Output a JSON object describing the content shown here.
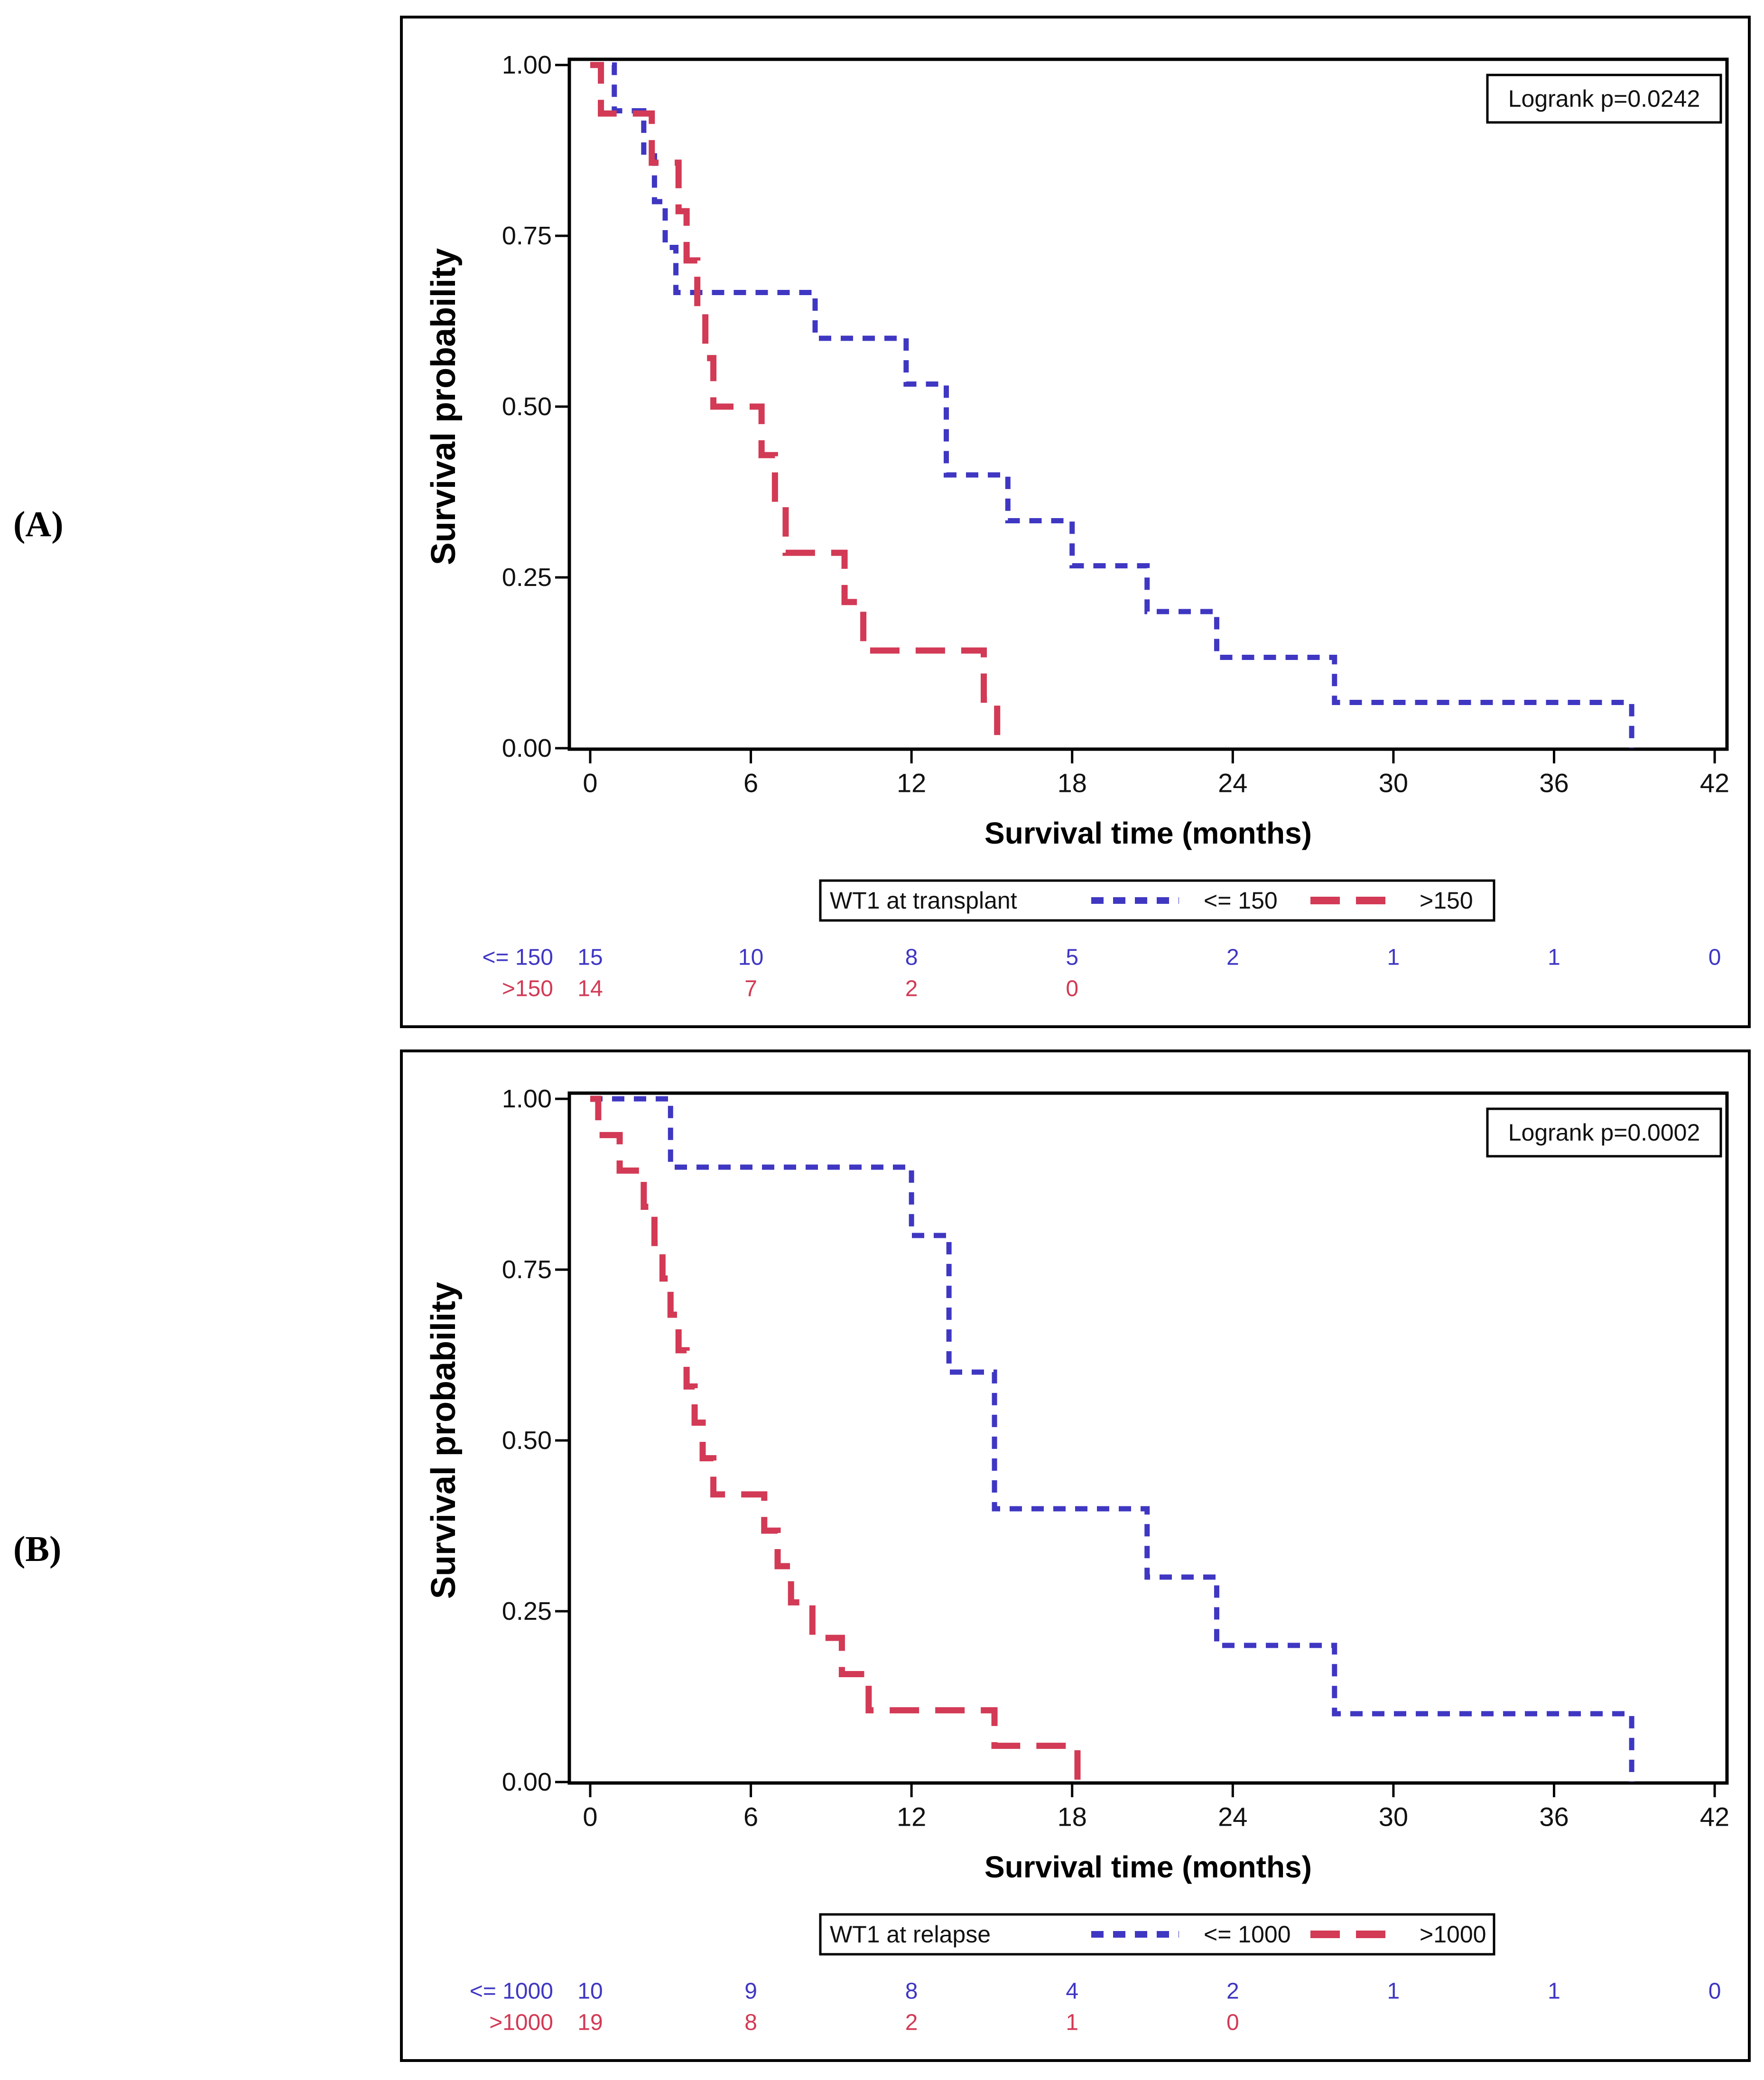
{
  "panel_labels": [
    "(A)",
    "(B)"
  ],
  "chart_data": [
    {
      "type": "line",
      "subtype": "kaplan-meier-step",
      "panel": "A",
      "logrank_label": "Logrank p=0.0242",
      "xlabel": "Survival time (months)",
      "ylabel": "Survival probability",
      "xlim": [
        0,
        42
      ],
      "ylim": [
        0,
        1
      ],
      "grid": false,
      "xticks": [
        0,
        6,
        12,
        18,
        24,
        30,
        36,
        42
      ],
      "xtick_labels": [
        "0",
        "6",
        "12",
        "18",
        "24",
        "30",
        "36",
        "42"
      ],
      "yticks": [
        1.0,
        0.75,
        0.5,
        0.25,
        0.0
      ],
      "ytick_labels": [
        "1.00",
        "0.75",
        "0.50",
        "0.25",
        "0.00"
      ],
      "legend": {
        "position": "bottom",
        "title": "WT1 at transplant",
        "entries": [
          {
            "label": "<= 150",
            "color": "#3f37c2",
            "style": "dotted"
          },
          {
            "label": ">150",
            "color": "#d23a55",
            "style": "dashed"
          }
        ]
      },
      "series": [
        {
          "name": "<= 150",
          "color": "#3f37c2",
          "style": "dotted",
          "steps": [
            [
              0,
              1.0
            ],
            [
              0.9,
              0.933
            ],
            [
              2.0,
              0.867
            ],
            [
              2.4,
              0.8
            ],
            [
              2.8,
              0.733
            ],
            [
              3.2,
              0.667
            ],
            [
              8.4,
              0.6
            ],
            [
              11.8,
              0.533
            ],
            [
              13.3,
              0.4
            ],
            [
              15.6,
              0.333
            ],
            [
              18.0,
              0.267
            ],
            [
              20.8,
              0.2
            ],
            [
              23.4,
              0.133
            ],
            [
              27.8,
              0.067
            ],
            [
              38.9,
              0.0
            ]
          ]
        },
        {
          "name": ">150",
          "color": "#d23a55",
          "style": "dashed",
          "steps": [
            [
              0,
              1.0
            ],
            [
              0.4,
              0.929
            ],
            [
              2.3,
              0.857
            ],
            [
              3.3,
              0.786
            ],
            [
              3.6,
              0.714
            ],
            [
              4.0,
              0.643
            ],
            [
              4.3,
              0.571
            ],
            [
              4.6,
              0.5
            ],
            [
              6.4,
              0.429
            ],
            [
              6.9,
              0.357
            ],
            [
              7.3,
              0.286
            ],
            [
              9.5,
              0.214
            ],
            [
              10.2,
              0.143
            ],
            [
              14.7,
              0.071
            ],
            [
              15.2,
              0.0
            ]
          ]
        }
      ],
      "at_risk": [
        {
          "label": "<= 150",
          "color": "#3f37c2",
          "values": [
            "15",
            "10",
            "8",
            "5",
            "2",
            "1",
            "1",
            "0"
          ]
        },
        {
          "label": ">150",
          "color": "#d23a55",
          "values": [
            "14",
            "7",
            "2",
            "0"
          ]
        }
      ]
    },
    {
      "type": "line",
      "subtype": "kaplan-meier-step",
      "panel": "B",
      "logrank_label": "Logrank p=0.0002",
      "xlabel": "Survival time (months)",
      "ylabel": "Survival probability",
      "xlim": [
        0,
        42
      ],
      "ylim": [
        0,
        1
      ],
      "grid": false,
      "xticks": [
        0,
        6,
        12,
        18,
        24,
        30,
        36,
        42
      ],
      "xtick_labels": [
        "0",
        "6",
        "12",
        "18",
        "24",
        "30",
        "36",
        "42"
      ],
      "yticks": [
        1.0,
        0.75,
        0.5,
        0.25,
        0.0
      ],
      "ytick_labels": [
        "1.00",
        "0.75",
        "0.50",
        "0.25",
        "0.00"
      ],
      "legend": {
        "position": "bottom",
        "title": "WT1 at relapse",
        "entries": [
          {
            "label": "<= 1000",
            "color": "#3f37c2",
            "style": "dotted"
          },
          {
            "label": ">1000",
            "color": "#d23a55",
            "style": "dashed"
          }
        ]
      },
      "series": [
        {
          "name": "<= 1000",
          "color": "#3f37c2",
          "style": "dotted",
          "steps": [
            [
              0,
              1.0
            ],
            [
              3.0,
              0.9
            ],
            [
              12.0,
              0.8
            ],
            [
              13.4,
              0.6
            ],
            [
              15.1,
              0.4
            ],
            [
              20.8,
              0.3
            ],
            [
              23.4,
              0.2
            ],
            [
              27.8,
              0.1
            ],
            [
              38.9,
              0.0
            ]
          ]
        },
        {
          "name": ">1000",
          "color": "#d23a55",
          "style": "dashed",
          "steps": [
            [
              0,
              1.0
            ],
            [
              0.3,
              0.947
            ],
            [
              1.1,
              0.895
            ],
            [
              2.0,
              0.842
            ],
            [
              2.4,
              0.789
            ],
            [
              2.7,
              0.737
            ],
            [
              3.0,
              0.684
            ],
            [
              3.3,
              0.632
            ],
            [
              3.6,
              0.579
            ],
            [
              3.9,
              0.526
            ],
            [
              4.2,
              0.474
            ],
            [
              4.6,
              0.421
            ],
            [
              6.5,
              0.368
            ],
            [
              7.0,
              0.316
            ],
            [
              7.5,
              0.263
            ],
            [
              8.3,
              0.211
            ],
            [
              9.4,
              0.158
            ],
            [
              10.4,
              0.105
            ],
            [
              15.1,
              0.053
            ],
            [
              18.2,
              0.0
            ]
          ]
        }
      ],
      "at_risk": [
        {
          "label": "<= 1000",
          "color": "#3f37c2",
          "values": [
            "10",
            "9",
            "8",
            "4",
            "2",
            "1",
            "1",
            "0"
          ]
        },
        {
          "label": ">1000",
          "color": "#d23a55",
          "values": [
            "19",
            "8",
            "2",
            "1",
            "0"
          ]
        }
      ]
    }
  ]
}
